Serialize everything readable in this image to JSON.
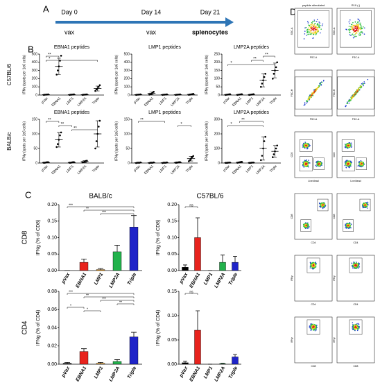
{
  "panel_labels": [
    "A",
    "B",
    "C",
    "D"
  ],
  "timeline": {
    "events": [
      {
        "day": "Day 0",
        "action": "vax"
      },
      {
        "day": "Day 14",
        "action": "vax"
      },
      {
        "day": "Day 21",
        "action": "splenocytes"
      }
    ]
  },
  "chart_data": [
    {
      "type": "dot",
      "title": "EBNA1 peptides",
      "row_label": "C57BL/6",
      "ylabel": "IFNγ (spots per 1e6 cells)",
      "categories": [
        "pVax",
        "EBNA1",
        "LMP1",
        "LMP2A",
        "Triple"
      ],
      "values": [
        5,
        350,
        5,
        5,
        80
      ],
      "errors": [
        3,
        100,
        3,
        3,
        30
      ],
      "points": [
        [
          2,
          4,
          5,
          6,
          8
        ],
        [
          250,
          300,
          350,
          420,
          480
        ],
        [
          2,
          4,
          5,
          6,
          8
        ],
        [
          2,
          4,
          5,
          6,
          8
        ],
        [
          50,
          70,
          80,
          100,
          120
        ]
      ],
      "ylim": [
        0,
        500
      ],
      "yticks": [
        0,
        100,
        200,
        300,
        400,
        500
      ],
      "brackets": [
        {
          "from": 0,
          "to": 1,
          "label": "**"
        },
        {
          "from": 0,
          "to": 4,
          "label": "*"
        }
      ]
    },
    {
      "type": "dot",
      "title": "LMP1 peptides",
      "ylabel": "IFNγ (spots per 1e6 cells)",
      "categories": [
        "pVax",
        "EBNA1",
        "LMP1",
        "LMP2A",
        "Triple"
      ],
      "values": [
        5,
        20,
        5,
        5,
        8
      ],
      "errors": [
        3,
        15,
        3,
        3,
        5
      ],
      "points": [
        [
          2,
          4,
          5,
          6,
          8
        ],
        [
          5,
          10,
          15,
          30,
          40
        ],
        [
          2,
          4,
          5,
          6,
          8
        ],
        [
          2,
          4,
          5,
          6,
          8
        ],
        [
          3,
          5,
          8,
          10,
          14
        ]
      ],
      "ylim": [
        0,
        500
      ],
      "yticks": [
        0,
        100,
        200,
        300,
        400,
        500
      ],
      "brackets": []
    },
    {
      "type": "dot",
      "title": "LMP2A peptides",
      "ylabel": "IFNγ (spots per 1e6 cells)",
      "categories": [
        "pVax",
        "EBNA1",
        "LMP1",
        "LMP2A",
        "Triple"
      ],
      "values": [
        3,
        3,
        3,
        90,
        150
      ],
      "errors": [
        2,
        2,
        2,
        40,
        45
      ],
      "points": [
        [
          1,
          2,
          3,
          4,
          5
        ],
        [
          1,
          2,
          3,
          4,
          5
        ],
        [
          1,
          2,
          3,
          4,
          5
        ],
        [
          50,
          70,
          90,
          110,
          130
        ],
        [
          100,
          130,
          150,
          170,
          200
        ]
      ],
      "ylim": [
        0,
        250
      ],
      "yticks": [
        0,
        50,
        100,
        150,
        200,
        250
      ],
      "brackets": [
        {
          "from": 3,
          "to": 4,
          "label": "**"
        },
        {
          "from": 2,
          "to": 3,
          "label": "**"
        },
        {
          "from": 0,
          "to": 4,
          "label": "*"
        }
      ]
    },
    {
      "type": "dot",
      "title": "EBNA1 peptides",
      "row_label": "BALB/c",
      "ylabel": "IFNγ (spots per 1e6 cells)",
      "categories": [
        "pVax",
        "EBNA1",
        "LMP1",
        "LMP2A",
        "Triple"
      ],
      "values": [
        2,
        80,
        2,
        5,
        100
      ],
      "errors": [
        1,
        25,
        1,
        3,
        45
      ],
      "points": [
        [
          1,
          1,
          2,
          3,
          3
        ],
        [
          55,
          65,
          80,
          95,
          105
        ],
        [
          1,
          1,
          2,
          3,
          3
        ],
        [
          2,
          3,
          5,
          7,
          8
        ],
        [
          50,
          75,
          100,
          125,
          145
        ]
      ],
      "ylim": [
        0,
        150
      ],
      "yticks": [
        0,
        50,
        100,
        150
      ],
      "brackets": [
        {
          "from": 0,
          "to": 1,
          "label": "**"
        },
        {
          "from": 1,
          "to": 2,
          "label": "**"
        },
        {
          "from": 2,
          "to": 4,
          "label": "**"
        }
      ]
    },
    {
      "type": "dot",
      "title": "LMP1 peptides",
      "ylabel": "IFNγ (spots per 1e6 cells)",
      "categories": [
        "pVax",
        "EBNA1",
        "LMP1",
        "LMP2A",
        "Triple"
      ],
      "values": [
        1,
        1,
        1,
        2,
        15
      ],
      "errors": [
        1,
        1,
        1,
        2,
        8
      ],
      "points": [
        [
          0,
          1,
          1,
          1,
          2
        ],
        [
          0,
          1,
          1,
          1,
          2
        ],
        [
          0,
          1,
          1,
          1,
          2
        ],
        [
          1,
          1,
          2,
          3,
          3
        ],
        [
          6,
          10,
          15,
          20,
          24
        ]
      ],
      "ylim": [
        0,
        150
      ],
      "yticks": [
        0,
        50,
        100,
        150
      ],
      "brackets": [
        {
          "from": 0,
          "to": 2,
          "label": "**"
        },
        {
          "from": 3,
          "to": 4,
          "label": "*"
        }
      ]
    },
    {
      "type": "dot",
      "title": "LMP2A peptides",
      "ylabel": "IFNγ (spots per 1e6 cells)",
      "categories": [
        "pVax",
        "EBNA1",
        "LMP1",
        "LMP2A",
        "Triple"
      ],
      "values": [
        2,
        5,
        2,
        100,
        80
      ],
      "errors": [
        1,
        3,
        1,
        80,
        40
      ],
      "points": [
        [
          1,
          1,
          2,
          3,
          3
        ],
        [
          2,
          3,
          5,
          7,
          8
        ],
        [
          1,
          1,
          2,
          3,
          3
        ],
        [
          20,
          50,
          100,
          150,
          180
        ],
        [
          40,
          60,
          80,
          100,
          120
        ]
      ],
      "ylim": [
        0,
        300
      ],
      "yticks": [
        0,
        100,
        200,
        300
      ],
      "brackets": [
        {
          "from": 1,
          "to": 3,
          "label": "**"
        },
        {
          "from": 0,
          "to": 3,
          "label": "*"
        }
      ]
    },
    {
      "type": "bar",
      "title": "BALB/c",
      "row_label": "CD8",
      "ylabel": "IFNg (% of CD8)",
      "categories": [
        "pVax",
        "EBNA1",
        "LMP1",
        "LMP2A",
        "Triple"
      ],
      "colors": [
        "#000000",
        "#e8231d",
        "#f4a11d",
        "#22b24c",
        "#1f24c8"
      ],
      "values": [
        0,
        0.025,
        0.003,
        0.057,
        0.132
      ],
      "errors": [
        0,
        0.01,
        0.003,
        0.02,
        0.035
      ],
      "ylim": [
        0,
        0.2
      ],
      "yticks": [
        {
          "value": 0,
          "label": "0.00"
        },
        {
          "value": 0.05,
          "label": "0.05"
        },
        {
          "value": 0.1,
          "label": "0.10"
        },
        {
          "value": 0.15,
          "label": "0.15"
        },
        {
          "value": 0.2,
          "label": "0.20"
        }
      ],
      "brackets": [
        {
          "from": 0,
          "to": 4,
          "label": "***"
        },
        {
          "from": 1,
          "to": 4,
          "label": "**"
        },
        {
          "from": 2,
          "to": 4,
          "label": "***"
        }
      ]
    },
    {
      "type": "bar",
      "title": "C57BL/6",
      "ylabel": "IFNg (% of CD8)",
      "categories": [
        "pVax",
        "EBNA1",
        "LMP1",
        "LMP2A",
        "Triple"
      ],
      "colors": [
        "#000000",
        "#e8231d",
        "#f4a11d",
        "#22b24c",
        "#1f24c8"
      ],
      "values": [
        0.01,
        0.1,
        0,
        0.025,
        0.025
      ],
      "errors": [
        0.007,
        0.06,
        0,
        0.022,
        0.018
      ],
      "ylim": [
        0,
        0.2
      ],
      "yticks": [
        {
          "value": 0,
          "label": "0.00"
        },
        {
          "value": 0.05,
          "label": "0.05"
        },
        {
          "value": 0.1,
          "label": "0.10"
        },
        {
          "value": 0.15,
          "label": "0.15"
        },
        {
          "value": 0.2,
          "label": "0.20"
        }
      ],
      "brackets": [
        {
          "from": 0,
          "to": 1,
          "label": "ns"
        }
      ]
    },
    {
      "type": "bar",
      "row_label": "CD4",
      "ylabel": "IFNg (% of CD4)",
      "categories": [
        "pVax",
        "EBNA1",
        "LMP1",
        "LMP2A",
        "Triple"
      ],
      "colors": [
        "#000000",
        "#e8231d",
        "#f4a11d",
        "#22b24c",
        "#1f24c8"
      ],
      "values": [
        0.001,
        0.014,
        0.001,
        0.003,
        0.03
      ],
      "errors": [
        0.001,
        0.003,
        0.001,
        0.002,
        0.005
      ],
      "ylim": [
        0,
        0.08
      ],
      "yticks": [
        {
          "value": 0,
          "label": "0.00"
        },
        {
          "value": 0.02,
          "label": "0.02"
        },
        {
          "value": 0.04,
          "label": "0.04"
        },
        {
          "value": 0.06,
          "label": "0.06"
        },
        {
          "value": 0.08,
          "label": "0.08"
        }
      ],
      "brackets": [
        {
          "from": 0,
          "to": 4,
          "label": "***"
        },
        {
          "from": 1,
          "to": 4,
          "label": "**"
        },
        {
          "from": 2,
          "to": 4,
          "label": "***"
        },
        {
          "from": 3,
          "to": 4,
          "label": "**"
        },
        {
          "from": 0,
          "to": 1,
          "label": "*"
        },
        {
          "from": 1,
          "to": 2,
          "label": "*"
        }
      ]
    },
    {
      "type": "bar",
      "ylabel": "IFNg (% of CD4)",
      "categories": [
        "pVax",
        "EBNA1",
        "LMP1",
        "LMP2A",
        "Triple"
      ],
      "colors": [
        "#000000",
        "#e8231d",
        "#f4a11d",
        "#22b24c",
        "#1f24c8"
      ],
      "values": [
        0.003,
        0.07,
        0,
        0.001,
        0.015
      ],
      "errors": [
        0.003,
        0.04,
        0,
        0.001,
        0.005
      ],
      "ylim": [
        0,
        0.15
      ],
      "yticks": [
        {
          "value": 0,
          "label": "0.00"
        },
        {
          "value": 0.05,
          "label": "0.05"
        },
        {
          "value": 0.1,
          "label": "0.10"
        },
        {
          "value": 0.15,
          "label": "0.15"
        }
      ],
      "brackets": [
        {
          "from": 0,
          "to": 1,
          "label": "ns"
        }
      ]
    }
  ],
  "flow": {
    "columns": [
      "peptide stimulated",
      "R10 (-)"
    ],
    "rows": [
      {
        "x": "FSC-A",
        "y": "SSC-A"
      },
      {
        "x": "FSC-A",
        "y": "FSC-H"
      },
      {
        "x": "Live/dead",
        "y": "CD3"
      },
      {
        "x": "CD4",
        "y": "CD8"
      },
      {
        "x": "CD4",
        "y": "IFNγ"
      },
      {
        "x": "CD8",
        "y": "IFNγ"
      }
    ]
  }
}
